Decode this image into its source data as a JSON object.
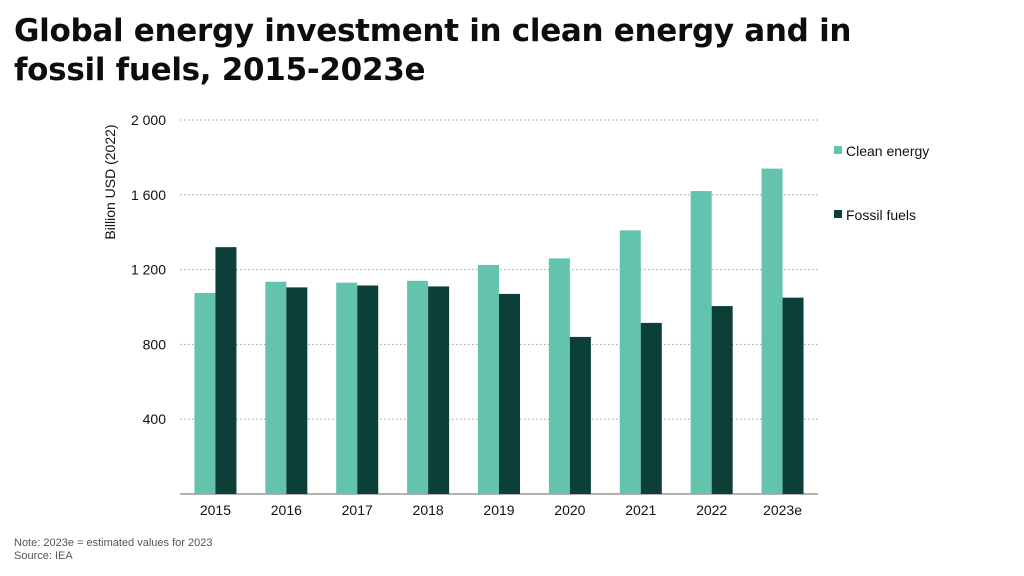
{
  "title": "Global energy investment in clean energy and in fossil fuels, 2015-2023e",
  "footnotes": {
    "note": "Note: 2023e = estimated values for 2023",
    "source": "Source: IEA"
  },
  "chart_data": {
    "type": "bar",
    "title": "Global energy investment in clean energy and in fossil fuels, 2015-2023e",
    "xlabel": "",
    "ylabel": "Billion USD (2022)",
    "categories": [
      "2015",
      "2016",
      "2017",
      "2018",
      "2019",
      "2020",
      "2021",
      "2022",
      "2023e"
    ],
    "series": [
      {
        "name": "Clean energy",
        "color": "#63c3ad",
        "values": [
          1075,
          1135,
          1130,
          1140,
          1225,
          1260,
          1410,
          1620,
          1740
        ]
      },
      {
        "name": "Fossil fuels",
        "color": "#0c3f38",
        "values": [
          1320,
          1105,
          1115,
          1110,
          1070,
          840,
          915,
          1005,
          1050
        ]
      }
    ],
    "ylim": [
      0,
      2000
    ],
    "yticks": [
      400,
      800,
      1200,
      1600,
      2000
    ],
    "ytick_labels": [
      "400",
      "800",
      "1 200",
      "1 600",
      "2 000"
    ],
    "grid": "horizontal dotted",
    "legend_position": "right"
  }
}
